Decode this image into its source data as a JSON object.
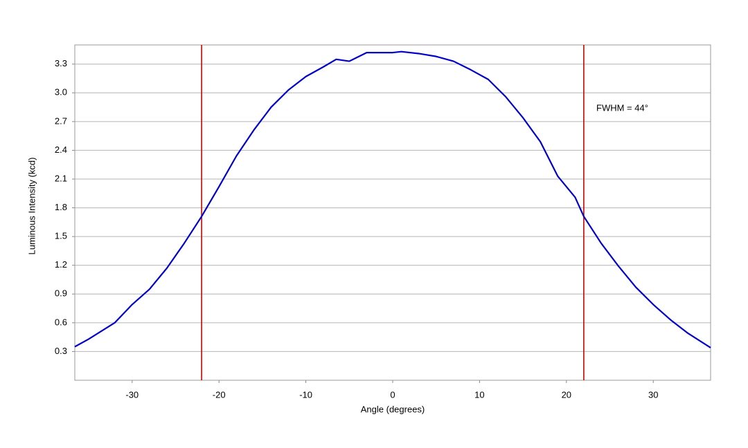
{
  "chart_data": {
    "type": "line",
    "x_label": "Angle (degrees)",
    "y_label": "Luminous Intensity (kcd)",
    "x": [
      -36.6,
      -35,
      -32,
      -30,
      -28,
      -26,
      -24,
      -22,
      -20,
      -18,
      -16,
      -14,
      -12,
      -10,
      -8,
      -6.5,
      -5,
      -3,
      0,
      1,
      3,
      5,
      7,
      9,
      11,
      13,
      15,
      17,
      19,
      21,
      22,
      24,
      26,
      28,
      30,
      32,
      34,
      36.6
    ],
    "series": [
      {
        "color": "#0000cc",
        "values": [
          0.35,
          0.43,
          0.6,
          0.79,
          0.95,
          1.17,
          1.43,
          1.71,
          2.02,
          2.34,
          2.61,
          2.85,
          3.03,
          3.17,
          3.27,
          3.35,
          3.33,
          3.42,
          3.42,
          3.43,
          3.41,
          3.38,
          3.33,
          3.24,
          3.14,
          2.96,
          2.74,
          2.49,
          2.13,
          1.91,
          1.71,
          1.43,
          1.19,
          0.97,
          0.79,
          0.63,
          0.49,
          0.34
        ]
      }
    ],
    "vlines": [
      {
        "x": -22,
        "color": "#cc0000"
      },
      {
        "x": 22,
        "color": "#cc0000"
      }
    ],
    "annotation": "FWHM = 44°",
    "xlim": [
      -36.6,
      36.6
    ],
    "ylim": [
      0,
      3.5
    ],
    "xticks": [
      -30,
      -20,
      -10,
      0,
      10,
      20,
      30
    ],
    "yticks": [
      0.3,
      0.6,
      0.9,
      1.2,
      1.5,
      1.8,
      2.1,
      2.4,
      2.7,
      {
        "value": 3,
        "label": "3.0"
      },
      3.3
    ],
    "grid": true
  }
}
